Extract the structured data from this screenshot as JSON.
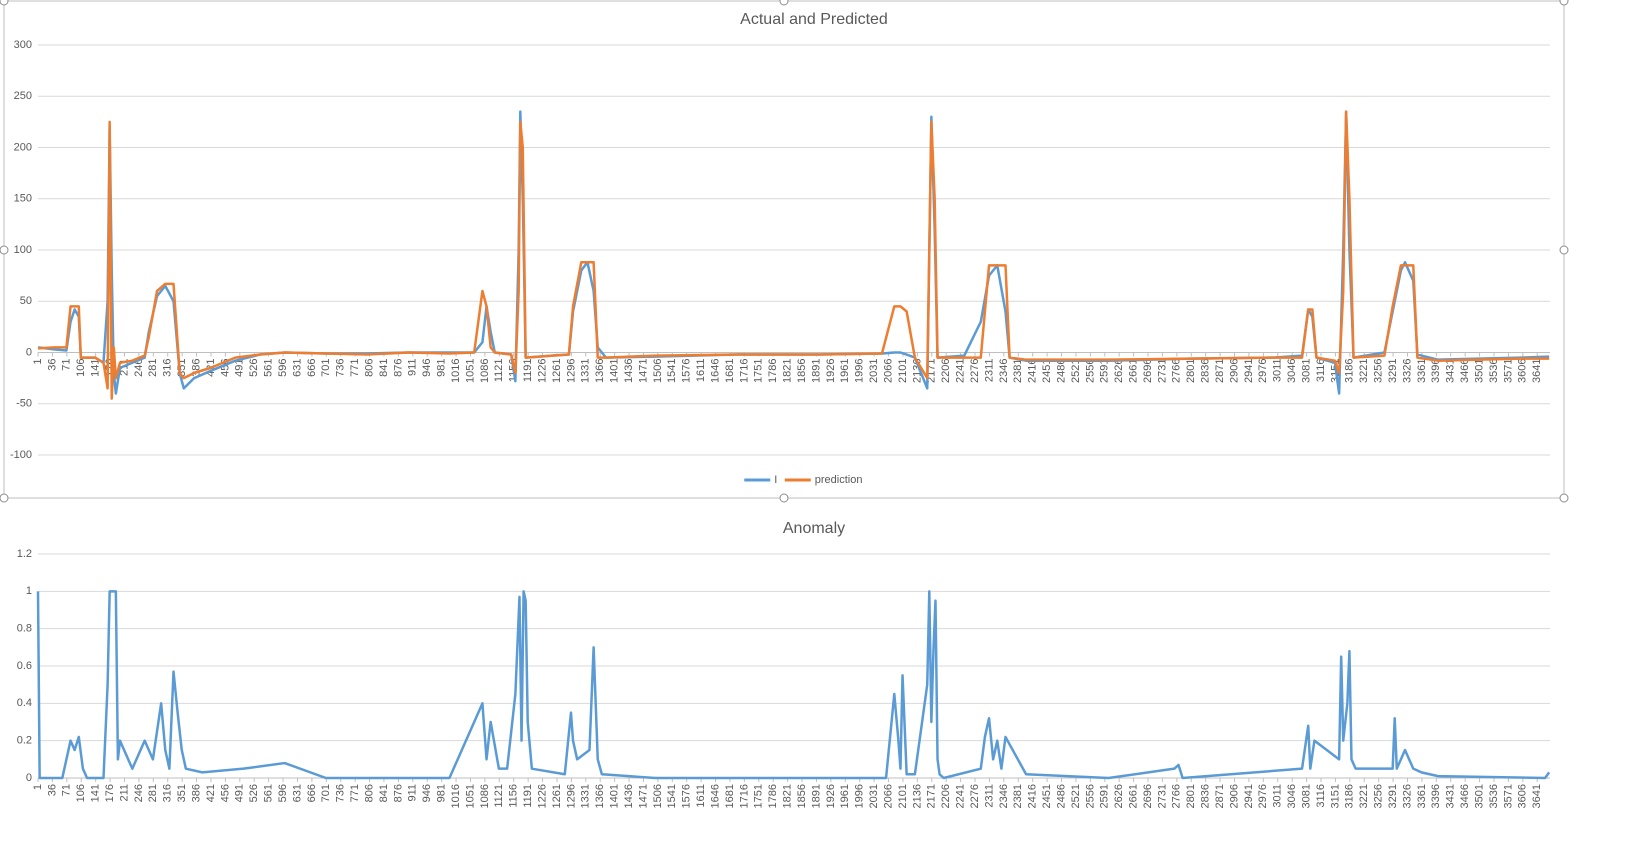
{
  "chart_data": [
    {
      "type": "line",
      "title": "Actual and Predicted",
      "x": [
        1,
        40,
        70,
        80,
        90,
        100,
        105,
        140,
        160,
        170,
        175,
        180,
        185,
        190,
        200,
        230,
        260,
        270,
        290,
        310,
        330,
        345,
        355,
        380,
        420,
        480,
        540,
        600,
        700,
        800,
        900,
        1000,
        1060,
        1080,
        1090,
        1100,
        1110,
        1150,
        1160,
        1168,
        1172,
        1178,
        1185,
        1250,
        1290,
        1300,
        1320,
        1335,
        1350,
        1360,
        1380,
        1500,
        1700,
        1900,
        2050,
        2080,
        2095,
        2110,
        2130,
        2160,
        2170,
        2178,
        2185,
        2250,
        2290,
        2310,
        2330,
        2350,
        2360,
        2400,
        2600,
        2800,
        3000,
        3070,
        3085,
        3095,
        3105,
        3150,
        3160,
        3170,
        3177,
        3185,
        3195,
        3270,
        3290,
        3310,
        3320,
        3340,
        3350,
        3400,
        3500,
        3600,
        3670
      ],
      "series": [
        {
          "name": "I",
          "color": "#5b9bd5",
          "values": [
            5,
            3,
            2,
            30,
            42,
            35,
            -5,
            -5,
            -10,
            50,
            220,
            80,
            -20,
            -40,
            -15,
            -10,
            -5,
            20,
            55,
            65,
            50,
            -20,
            -35,
            -25,
            -18,
            -8,
            -2,
            0,
            -1,
            -1,
            0,
            0,
            0,
            10,
            45,
            20,
            0,
            -2,
            -28,
            100,
            235,
            150,
            -5,
            -3,
            -2,
            40,
            80,
            88,
            60,
            5,
            -5,
            -4,
            -2,
            -2,
            -1,
            0,
            0,
            -2,
            -5,
            -35,
            230,
            120,
            -5,
            -3,
            30,
            75,
            85,
            40,
            -5,
            -8,
            -8,
            -6,
            -5,
            -3,
            42,
            35,
            -5,
            -10,
            -40,
            100,
            235,
            100,
            -5,
            0,
            40,
            80,
            88,
            70,
            -2,
            -7,
            -6,
            -5,
            -4
          ]
        },
        {
          "name": "prediction",
          "color": "#ed7d31",
          "values": [
            4,
            5,
            5,
            45,
            45,
            45,
            -5,
            -5,
            -10,
            -35,
            225,
            -45,
            5,
            -25,
            -10,
            -8,
            -3,
            15,
            60,
            67,
            67,
            -20,
            -25,
            -20,
            -15,
            -5,
            -2,
            0,
            -1,
            -2,
            0,
            -1,
            0,
            60,
            45,
            5,
            0,
            -2,
            -20,
            60,
            225,
            200,
            -5,
            -3,
            -2,
            45,
            88,
            88,
            88,
            -5,
            -5,
            -3,
            -2,
            -2,
            -1,
            45,
            45,
            40,
            -5,
            -25,
            225,
            150,
            -5,
            -5,
            -5,
            85,
            85,
            85,
            -5,
            -7,
            -7,
            -6,
            -5,
            -5,
            42,
            42,
            -5,
            -8,
            -20,
            60,
            235,
            150,
            -5,
            -3,
            45,
            85,
            85,
            85,
            -5,
            -8,
            -7,
            -6,
            -6
          ]
        }
      ],
      "xlim": [
        1,
        3672
      ],
      "xticks": [
        1,
        36,
        71,
        106,
        141,
        176,
        211,
        246,
        281,
        316,
        351,
        386,
        421,
        456,
        491,
        526,
        561,
        596,
        631,
        666,
        701,
        736,
        771,
        806,
        841,
        876,
        911,
        946,
        981,
        1016,
        1051,
        1086,
        1121,
        1156,
        1191,
        1226,
        1261,
        1296,
        1331,
        1366,
        1401,
        1436,
        1471,
        1506,
        1541,
        1576,
        1611,
        1646,
        1681,
        1716,
        1751,
        1786,
        1821,
        1856,
        1891,
        1926,
        1961,
        1996,
        2031,
        2066,
        2101,
        2136,
        2171,
        2206,
        2241,
        2276,
        2311,
        2346,
        2381,
        2416,
        2451,
        2486,
        2521,
        2556,
        2591,
        2626,
        2661,
        2696,
        2731,
        2766,
        2801,
        2836,
        2871,
        2906,
        2941,
        2976,
        3011,
        3046,
        3081,
        3116,
        3151,
        3186,
        3221,
        3256,
        3291,
        3326,
        3361,
        3396,
        3431,
        3466,
        3501,
        3536,
        3571,
        3606,
        3641
      ],
      "ylim": [
        -100,
        300
      ],
      "yticks": [
        -100,
        -50,
        0,
        50,
        100,
        150,
        200,
        250,
        300
      ],
      "grid": true,
      "legend": "bottom"
    },
    {
      "type": "line",
      "title": "Anomaly",
      "color": "#5b9bd5",
      "x": [
        1,
        5,
        10,
        60,
        80,
        90,
        100,
        110,
        120,
        160,
        170,
        175,
        180,
        190,
        195,
        200,
        230,
        260,
        280,
        300,
        310,
        320,
        330,
        340,
        350,
        360,
        400,
        500,
        600,
        700,
        1000,
        1080,
        1090,
        1100,
        1120,
        1140,
        1160,
        1170,
        1175,
        1180,
        1185,
        1190,
        1200,
        1280,
        1295,
        1300,
        1310,
        1340,
        1350,
        1360,
        1370,
        1500,
        2060,
        2080,
        2090,
        2095,
        2100,
        2110,
        2130,
        2160,
        2165,
        2170,
        2175,
        2180,
        2185,
        2190,
        2200,
        2290,
        2300,
        2310,
        2320,
        2330,
        2340,
        2350,
        2400,
        2600,
        2760,
        2770,
        2780,
        3070,
        3085,
        3090,
        3100,
        3160,
        3165,
        3170,
        3180,
        3185,
        3190,
        3200,
        3290,
        3295,
        3300,
        3320,
        3330,
        3340,
        3360,
        3400,
        3660,
        3670
      ],
      "values": [
        1,
        0,
        0,
        0,
        0.2,
        0.15,
        0.22,
        0.05,
        0,
        0,
        0.5,
        1,
        1,
        1,
        0.1,
        0.2,
        0.05,
        0.2,
        0.1,
        0.4,
        0.15,
        0.05,
        0.57,
        0.35,
        0.15,
        0.05,
        0.03,
        0.05,
        0.08,
        0,
        0,
        0.4,
        0.1,
        0.3,
        0.05,
        0.05,
        0.45,
        0.97,
        0.2,
        1,
        0.95,
        0.3,
        0.05,
        0.02,
        0.35,
        0.2,
        0.1,
        0.15,
        0.7,
        0.1,
        0.02,
        0,
        0,
        0.45,
        0.2,
        0.05,
        0.55,
        0.02,
        0.02,
        0.5,
        1,
        0.3,
        0.68,
        0.95,
        0.1,
        0.02,
        0,
        0.05,
        0.22,
        0.32,
        0.1,
        0.2,
        0.05,
        0.22,
        0.02,
        0,
        0.05,
        0.07,
        0,
        0.05,
        0.28,
        0.05,
        0.2,
        0.1,
        0.65,
        0.2,
        0.4,
        0.68,
        0.1,
        0.05,
        0.05,
        0.32,
        0.05,
        0.15,
        0.1,
        0.05,
        0.03,
        0.01,
        0,
        0.03
      ],
      "xlim": [
        1,
        3672
      ],
      "xticks": [
        1,
        36,
        71,
        106,
        141,
        176,
        211,
        246,
        281,
        316,
        351,
        386,
        421,
        456,
        491,
        526,
        561,
        596,
        631,
        666,
        701,
        736,
        771,
        806,
        841,
        876,
        911,
        946,
        981,
        1016,
        1051,
        1086,
        1121,
        1156,
        1191,
        1226,
        1261,
        1296,
        1331,
        1366,
        1401,
        1436,
        1471,
        1506,
        1541,
        1576,
        1611,
        1646,
        1681,
        1716,
        1751,
        1786,
        1821,
        1856,
        1891,
        1926,
        1961,
        1996,
        2031,
        2066,
        2101,
        2136,
        2171,
        2206,
        2241,
        2276,
        2311,
        2346,
        2381,
        2416,
        2451,
        2486,
        2521,
        2556,
        2591,
        2626,
        2661,
        2696,
        2731,
        2766,
        2801,
        2836,
        2871,
        2906,
        2941,
        2976,
        3011,
        3046,
        3081,
        3116,
        3151,
        3186,
        3221,
        3256,
        3291,
        3326,
        3361,
        3396,
        3431,
        3466,
        3501,
        3536,
        3571,
        3606,
        3641
      ],
      "ylim": [
        0,
        1.2
      ],
      "yticks": [
        0,
        0.2,
        0.4,
        0.6,
        0.8,
        1,
        1.2
      ],
      "grid": true
    }
  ]
}
